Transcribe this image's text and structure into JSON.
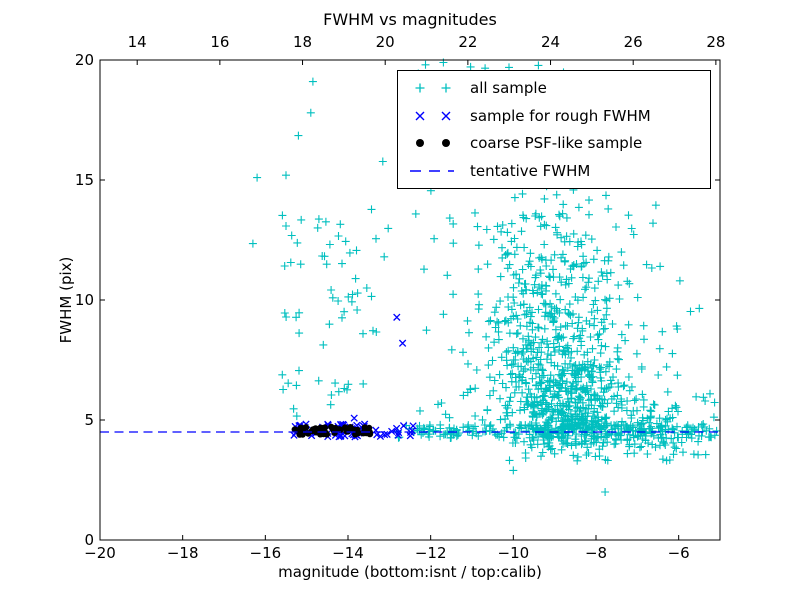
{
  "title": "FWHM vs magnitudes",
  "axis": {
    "xlabel": "magnitude (bottom:isnt / top:calib)",
    "ylabel": "FWHM (pix)",
    "x_range": [
      -20,
      -5
    ],
    "x_top_range": [
      13.1,
      28.1
    ],
    "y_range": [
      0,
      20
    ],
    "bottom_ticks": [
      {
        "v": -20,
        "label": "−20"
      },
      {
        "v": -18,
        "label": "−18"
      },
      {
        "v": -16,
        "label": "−16"
      },
      {
        "v": -14,
        "label": "−14"
      },
      {
        "v": -12,
        "label": "−12"
      },
      {
        "v": -10,
        "label": "−10"
      },
      {
        "v": -8,
        "label": "−8"
      },
      {
        "v": -6,
        "label": "−6"
      }
    ],
    "top_ticks": [
      {
        "v": 14,
        "label": "14"
      },
      {
        "v": 16,
        "label": "16"
      },
      {
        "v": 18,
        "label": "18"
      },
      {
        "v": 20,
        "label": "20"
      },
      {
        "v": 22,
        "label": "22"
      },
      {
        "v": 24,
        "label": "24"
      },
      {
        "v": 26,
        "label": "26"
      },
      {
        "v": 28,
        "label": "28"
      }
    ],
    "y_ticks": [
      {
        "v": 0,
        "label": "0"
      },
      {
        "v": 5,
        "label": "5"
      },
      {
        "v": 10,
        "label": "10"
      },
      {
        "v": 15,
        "label": "15"
      },
      {
        "v": 20,
        "label": "20"
      }
    ]
  },
  "colors": {
    "all_sample": "#00bfbf",
    "rough_fwhm": "#0000ff",
    "psf_like": "#000000",
    "tentative_line": "#0000ff",
    "frame": "#000000",
    "background": "#ffffff"
  },
  "legend": {
    "items": [
      {
        "label": "all sample",
        "marker": "plus",
        "color": "#00bfbf"
      },
      {
        "label": "sample for rough FWHM",
        "marker": "cross",
        "color": "#0000ff"
      },
      {
        "label": "coarse PSF-like sample",
        "marker": "dot",
        "color": "#000000"
      },
      {
        "label": "tentative FWHM",
        "marker": "dashed-line",
        "color": "#0000ff"
      }
    ]
  },
  "chart_data": {
    "type": "scatter",
    "title": "FWHM vs magnitudes",
    "xlabel": "magnitude (bottom:isnt / top:calib)",
    "ylabel": "FWHM (pix)",
    "x_axis_bottom": {
      "range": [
        -20,
        -5
      ],
      "ticks": [
        -20,
        -18,
        -16,
        -14,
        -12,
        -10,
        -8,
        -6
      ]
    },
    "x_axis_top": {
      "range": [
        13.1,
        28.1
      ],
      "ticks": [
        14,
        16,
        18,
        20,
        22,
        24,
        26,
        28
      ],
      "offset_from_bottom": 33.1
    },
    "y_axis": {
      "range": [
        0,
        20
      ],
      "ticks": [
        0,
        5,
        10,
        15,
        20
      ]
    },
    "grid": false,
    "legend_position": "upper right",
    "tentative_fwhm": 4.5,
    "seed": 7,
    "series": [
      {
        "name": "all sample",
        "marker": "+",
        "color": "#00bfbf",
        "clusters": [
          {
            "shape": "uniform",
            "n": 210,
            "x": [
              -12.85,
              -5.08
            ],
            "y": [
              4.25,
              4.8
            ]
          },
          {
            "shape": "uniform",
            "n": 115,
            "x": [
              -9.45,
              -6.1
            ],
            "y": [
              3.85,
              5.15
            ]
          },
          {
            "shape": "uniform",
            "n": 26,
            "x": [
              -10.4,
              -5.25
            ],
            "y": [
              3.3,
              4.1
            ]
          },
          {
            "shape": "uniform",
            "n": 46,
            "x": [
              -7.25,
              -5.12
            ],
            "y": [
              3.5,
              6.3
            ]
          },
          {
            "shape": "uniform",
            "n": 11,
            "x": [
              -7.1,
              -5.3
            ],
            "y": [
              6.6,
              9.7
            ]
          },
          {
            "shape": "gauss",
            "n": 430,
            "cx": -8.75,
            "cy": 5.9,
            "sx": 0.72,
            "sy": 1.15,
            "ymin": 3.3
          },
          {
            "shape": "gauss",
            "n": 255,
            "cx": -8.9,
            "cy": 8.6,
            "sx": 0.85,
            "sy": 1.9,
            "ymin": 4.0
          },
          {
            "shape": "gauss",
            "n": 145,
            "cx": -9.05,
            "cy": 12.3,
            "sx": 1.0,
            "sy": 1.7,
            "ymin": 9.0
          },
          {
            "shape": "uniform",
            "n": 22,
            "x": [
              -10.0,
              -7.3
            ],
            "y": [
              14.8,
              18.7
            ]
          },
          {
            "shape": "uniform",
            "n": 9,
            "x": [
              -12.2,
              -8.5
            ],
            "y": [
              19.3,
              19.9
            ]
          },
          {
            "shape": "uniform",
            "n": 20,
            "x": [
              -15.6,
              -15.1
            ],
            "y": [
              5.0,
              13.8
            ]
          },
          {
            "shape": "uniform",
            "n": 42,
            "x": [
              -14.75,
              -13.25
            ],
            "y": [
              5.4,
              14.5
            ]
          },
          {
            "shape": "uniform",
            "n": 14,
            "x": [
              -13.2,
              -11.4
            ],
            "y": [
              8.2,
              19.6
            ]
          },
          {
            "shape": "uniform",
            "n": 14,
            "x": [
              -12.6,
              -10.9
            ],
            "y": [
              5.0,
              8.0
            ]
          },
          {
            "shape": "uniform",
            "n": 34,
            "x": [
              -10.9,
              -9.55
            ],
            "y": [
              4.8,
              10.0
            ]
          }
        ],
        "points": [
          [
            -14.85,
            19.1
          ],
          [
            -14.9,
            17.8
          ],
          [
            -15.2,
            16.85
          ],
          [
            -15.5,
            15.2
          ],
          [
            -16.2,
            15.1
          ],
          [
            -16.3,
            12.35
          ],
          [
            -6.62,
            13.2
          ],
          [
            -6.55,
            13.95
          ],
          [
            -6.45,
            11.4
          ],
          [
            -5.97,
            10.8
          ],
          [
            -5.5,
            9.65
          ],
          [
            -7.78,
            2.0
          ],
          [
            -10.0,
            2.9
          ]
        ]
      },
      {
        "name": "sample for rough FWHM",
        "marker": "x",
        "color": "#0000ff",
        "clusters": [
          {
            "shape": "uniform",
            "n": 58,
            "x": [
              -15.32,
              -12.42
            ],
            "y": [
              4.3,
              4.88
            ]
          },
          {
            "shape": "uniform",
            "n": 12,
            "x": [
              -15.2,
              -13.5
            ],
            "y": [
              4.6,
              4.85
            ]
          }
        ],
        "points": [
          [
            -12.82,
            9.28
          ],
          [
            -12.68,
            8.2
          ],
          [
            -13.85,
            5.08
          ]
        ]
      },
      {
        "name": "coarse PSF-like sample",
        "marker": "o",
        "color": "#000000",
        "clusters": [
          {
            "shape": "uniform",
            "n": 48,
            "x": [
              -15.3,
              -13.47
            ],
            "y": [
              4.38,
              4.72
            ]
          }
        ],
        "points": []
      },
      {
        "name": "tentative FWHM",
        "marker": "line",
        "color": "#0000ff",
        "line": {
          "y": 4.5,
          "dash": true
        }
      }
    ]
  }
}
